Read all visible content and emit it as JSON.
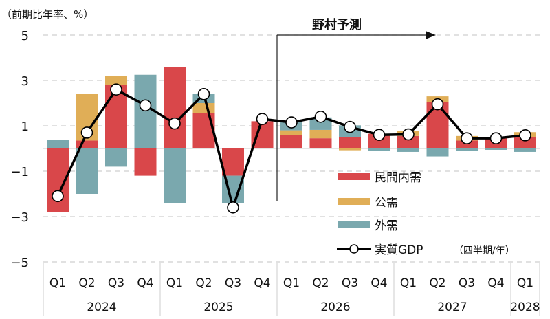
{
  "chart_data": {
    "type": "bar",
    "subtype": "stacked bar with line",
    "ylabel": "（前期比年率、%）",
    "xlabel": "（四半期/年）",
    "ylim": [
      -5,
      5
    ],
    "yticks": [
      5,
      3,
      1,
      -1,
      -3,
      -5
    ],
    "grid": true,
    "legend_position": "bottom-right",
    "forecast_label": "野村予測",
    "forecast_start": "2026 Q1",
    "categories": [
      "Q1",
      "Q2",
      "Q3",
      "Q4",
      "Q1",
      "Q2",
      "Q3",
      "Q4",
      "Q1",
      "Q2",
      "Q3",
      "Q4",
      "Q1",
      "Q2",
      "Q3",
      "Q4",
      "Q1"
    ],
    "years": [
      {
        "label": "2024",
        "quarters": 4
      },
      {
        "label": "2025",
        "quarters": 4
      },
      {
        "label": "2026",
        "quarters": 4
      },
      {
        "label": "2027",
        "quarters": 4
      },
      {
        "label": "2028",
        "quarters": 1
      }
    ],
    "series": [
      {
        "name": "民間内需",
        "kind": "bar",
        "color": "#d9474a",
        "values": [
          -2.8,
          0.35,
          2.8,
          -1.2,
          3.6,
          1.55,
          -1.2,
          1.2,
          0.6,
          0.45,
          0.5,
          0.65,
          0.55,
          2.05,
          0.35,
          0.45,
          0.5
        ]
      },
      {
        "name": "公需",
        "kind": "bar",
        "color": "#e0ae57",
        "values": [
          0,
          2.05,
          0.4,
          0,
          0,
          0.45,
          0,
          0,
          0.2,
          0.37,
          -0.08,
          0,
          0.22,
          0.25,
          0.2,
          0,
          0.22
        ]
      },
      {
        "name": "外需",
        "kind": "bar",
        "color": "#7aa8ae",
        "values": [
          0.38,
          -2.0,
          -0.8,
          3.25,
          -2.4,
          0.4,
          -1.2,
          0,
          0.37,
          0.55,
          0.52,
          -0.12,
          -0.15,
          -0.35,
          -0.1,
          -0.06,
          -0.15
        ]
      },
      {
        "name": "実質GDP",
        "kind": "line",
        "color": "#000000",
        "values": [
          -2.1,
          0.7,
          2.6,
          1.9,
          1.1,
          2.4,
          -2.6,
          1.3,
          1.15,
          1.4,
          0.95,
          0.6,
          0.62,
          1.95,
          0.45,
          0.45,
          0.58
        ]
      }
    ]
  }
}
